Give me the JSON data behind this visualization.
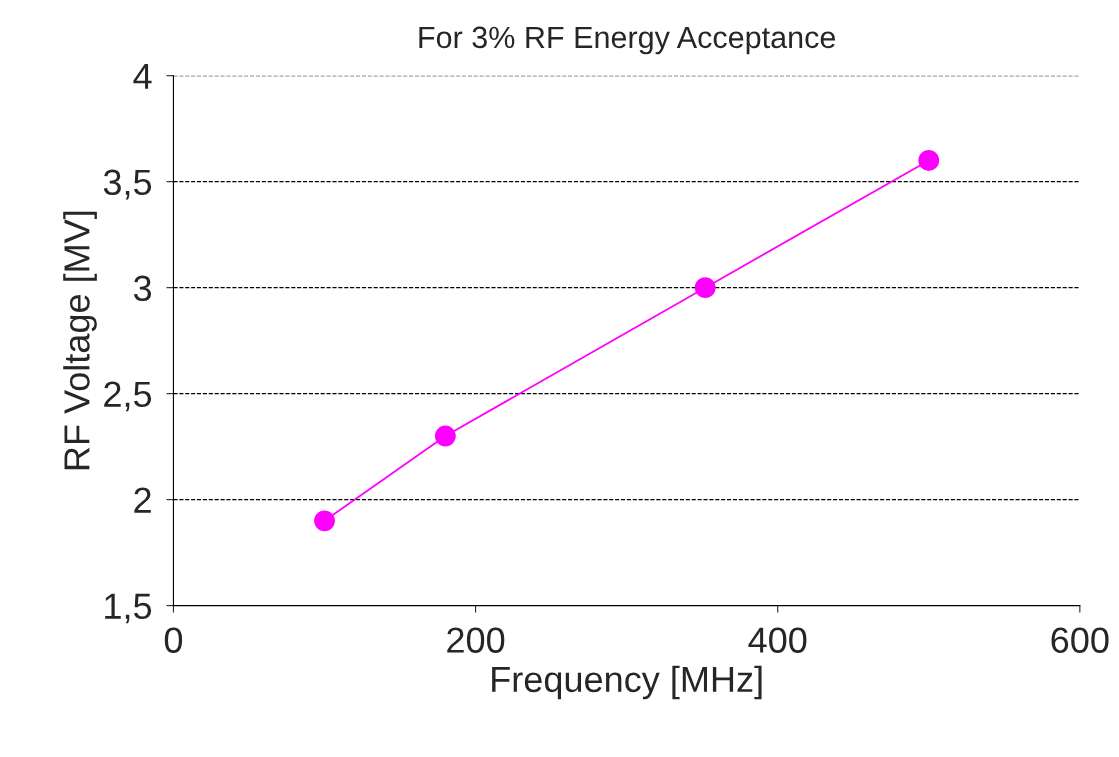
{
  "chart_data": {
    "type": "line",
    "title": "For 3% RF Energy Acceptance",
    "xlabel": "Frequency [MHz]",
    "ylabel": "RF Voltage [MV]",
    "x": [
      100,
      180,
      352,
      500
    ],
    "series": [
      {
        "color": "#ff00ff",
        "values": [
          1.9,
          2.3,
          3.0,
          3.6
        ]
      }
    ],
    "xlim": [
      0,
      600
    ],
    "xticks": [
      0,
      200,
      400,
      600
    ],
    "ylim": [
      1.5,
      4
    ],
    "yticks": [
      {
        "value": 1.5,
        "label": "1,5"
      },
      2,
      {
        "value": 2.5,
        "label": "2,5"
      },
      3,
      {
        "value": 3.5,
        "label": "3,5"
      },
      4
    ],
    "grid": "y",
    "marker": "circle",
    "line_style": "solid",
    "legend": false
  }
}
